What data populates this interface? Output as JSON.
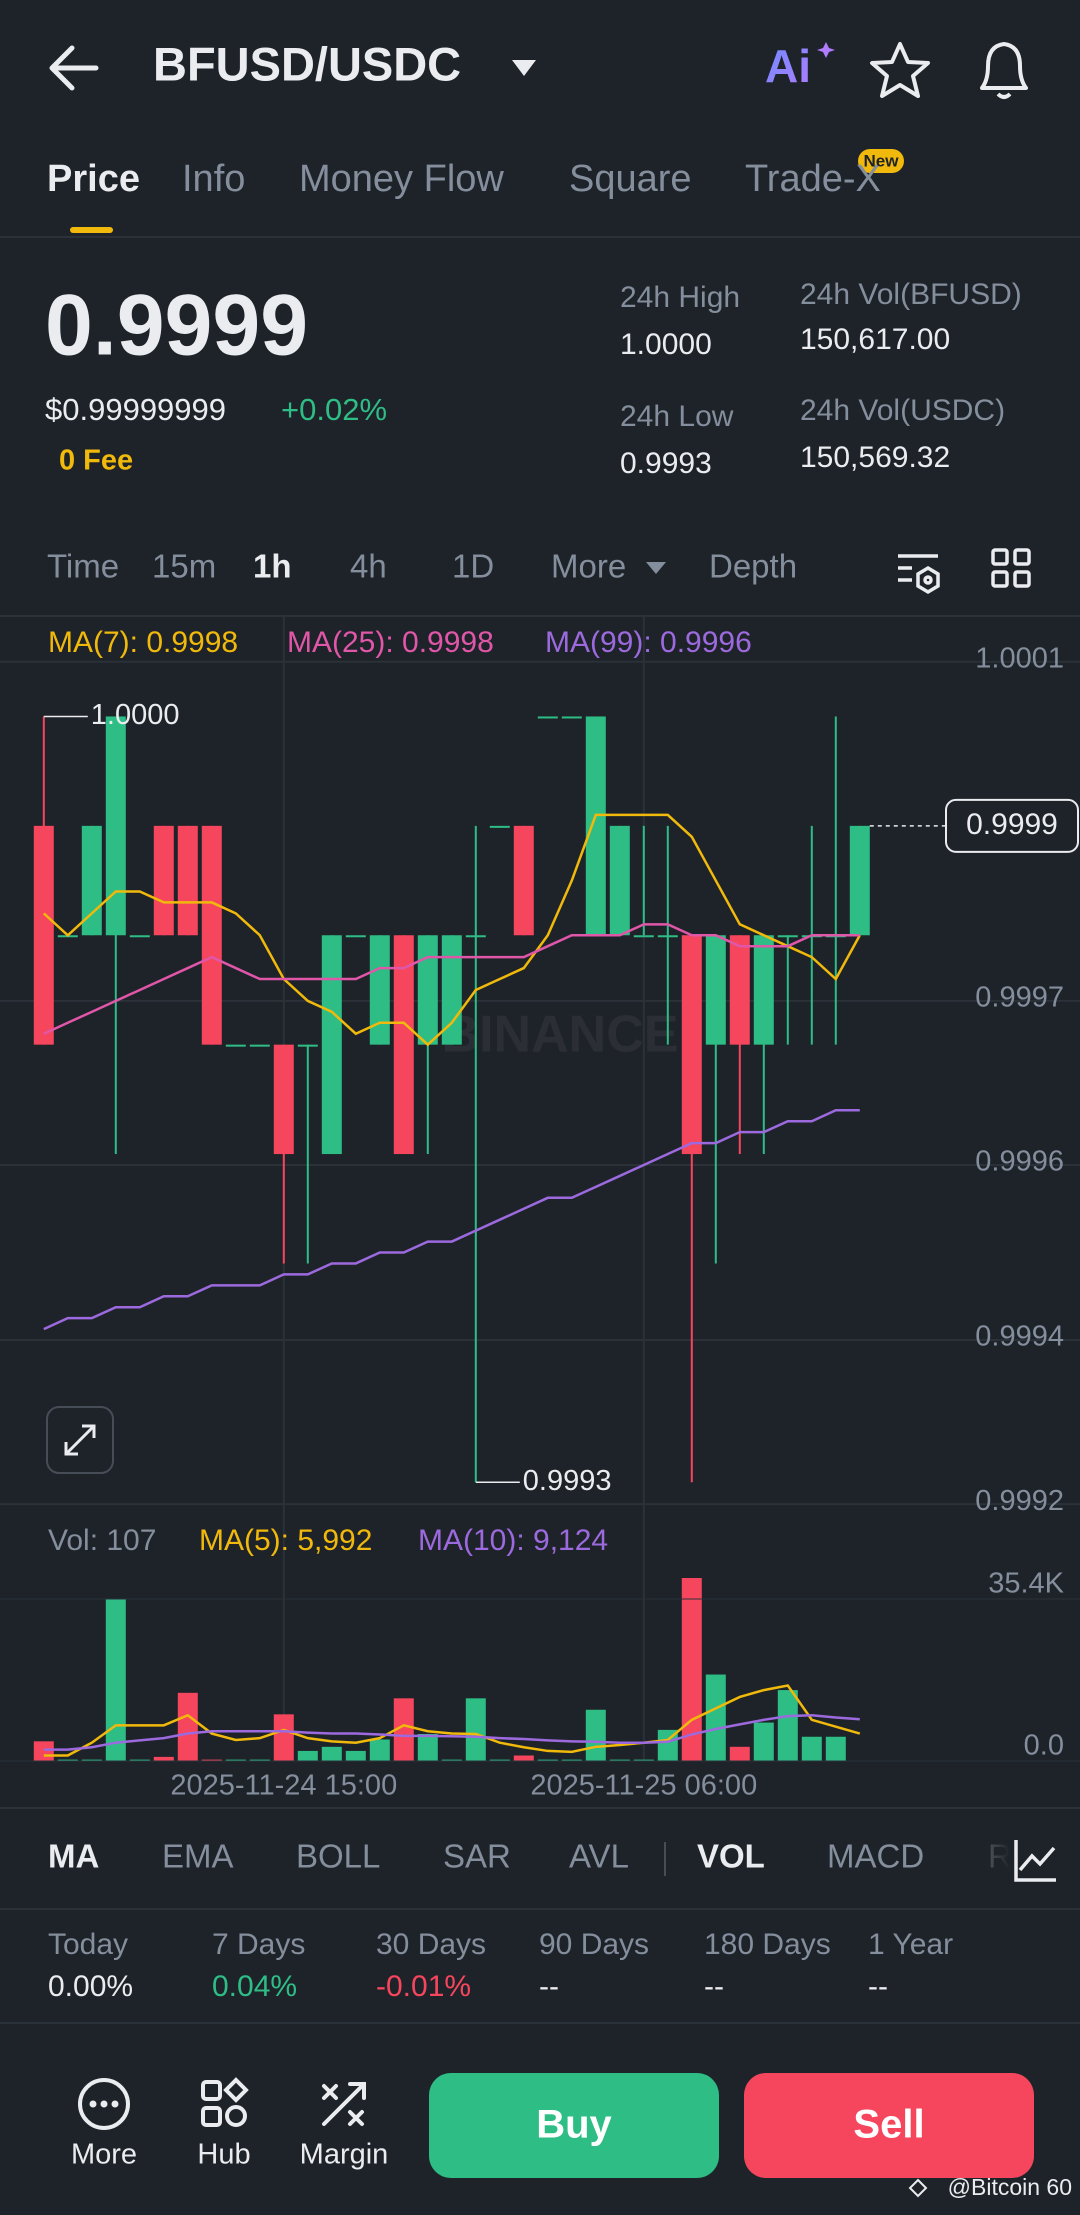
{
  "header": {
    "pair": "BFUSD/USDC",
    "ai": "Ai"
  },
  "tabs": [
    "Price",
    "Info",
    "Money Flow",
    "Square",
    "Trade-X"
  ],
  "new_badge": "New",
  "price": {
    "last": "0.9999",
    "usd": "$0.99999999",
    "change": "+0.02%",
    "fee": "0 Fee"
  },
  "stats": [
    {
      "label": "24h High",
      "value": "1.0000"
    },
    {
      "label": "24h Vol(BFUSD)",
      "value": "150,617.00"
    },
    {
      "label": "24h Low",
      "value": "0.9993"
    },
    {
      "label": "24h Vol(USDC)",
      "value": "150,569.32"
    }
  ],
  "intervals": [
    "Time",
    "15m",
    "1h",
    "4h",
    "1D",
    "More",
    "Depth"
  ],
  "ma_legend": [
    "MA(7): 0.9998",
    "MA(25): 0.9998",
    "MA(99): 0.9996"
  ],
  "vol_legend": [
    "Vol: 107",
    "MA(5): 5,992",
    "MA(10): 9,124"
  ],
  "watermark": "BINANCE",
  "chart_data": {
    "type": "candlestick",
    "up_color": "#2ebd85",
    "down_color": "#f6465d",
    "grid": true,
    "categories": [
      null,
      null,
      null,
      null,
      null,
      null,
      null,
      null,
      null,
      null,
      "2025-11-24 15:00",
      null,
      null,
      null,
      null,
      null,
      null,
      null,
      null,
      null,
      null,
      null,
      null,
      null,
      null,
      "2025-11-25 06:00",
      null,
      null,
      null,
      null,
      null,
      null,
      null,
      null,
      null
    ],
    "open": [
      0.9999,
      0.9998,
      0.9998,
      0.9998,
      0.9998,
      0.9999,
      0.9999,
      0.9999,
      0.9997,
      0.9997,
      0.9997,
      0.9997,
      0.9996,
      0.9998,
      0.9997,
      0.9998,
      0.9997,
      0.9997,
      0.9998,
      0.9999,
      0.9999,
      1.0,
      1.0,
      0.9998,
      0.9998,
      0.9998,
      0.9998,
      0.9998,
      0.9997,
      0.9998,
      0.9997,
      0.9998,
      0.9998,
      0.9998,
      0.9998
    ],
    "high": [
      1.0,
      0.9998,
      0.9999,
      1.0,
      0.9998,
      0.9999,
      0.9999,
      0.9999,
      0.9997,
      0.9997,
      0.9997,
      0.9997,
      0.9998,
      0.9998,
      0.9998,
      0.9998,
      0.9998,
      0.9998,
      0.9999,
      0.9999,
      0.9999,
      1.0,
      1.0,
      1.0,
      0.9999,
      0.9999,
      0.9999,
      0.9998,
      0.9998,
      0.9998,
      0.9998,
      0.9998,
      0.9999,
      1.0,
      0.9999
    ],
    "low": [
      0.9997,
      0.9998,
      0.9998,
      0.9996,
      0.9998,
      0.9998,
      0.9998,
      0.9997,
      0.9997,
      0.9997,
      0.9995,
      0.9995,
      0.9996,
      0.9998,
      0.9997,
      0.9996,
      0.9996,
      0.9997,
      0.9993,
      0.9999,
      0.9998,
      1.0,
      1.0,
      0.9998,
      0.9998,
      0.9998,
      0.9997,
      0.9993,
      0.9995,
      0.9996,
      0.9996,
      0.9997,
      0.9997,
      0.9997,
      0.9998
    ],
    "close": [
      0.9997,
      0.9998,
      0.9999,
      1.0,
      0.9998,
      0.9998,
      0.9998,
      0.9997,
      0.9997,
      0.9997,
      0.9996,
      0.9997,
      0.9998,
      0.9998,
      0.9998,
      0.9996,
      0.9998,
      0.9998,
      0.9998,
      0.9999,
      0.9998,
      1.0,
      1.0,
      1.0,
      0.9999,
      0.9998,
      0.9998,
      0.9996,
      0.9998,
      0.9997,
      0.9998,
      0.9998,
      0.9998,
      0.9998,
      0.9999
    ],
    "series": [
      {
        "color": "#f0b90b",
        "values": [
          0.99982,
          0.9998,
          0.99982,
          0.99984,
          0.99984,
          0.99983,
          0.99983,
          0.99983,
          0.99982,
          0.9998,
          0.99976,
          0.99974,
          0.99973,
          0.99971,
          0.99972,
          0.99972,
          0.9997,
          0.99972,
          0.99975,
          0.99976,
          0.99977,
          0.9998,
          0.99985,
          0.99991,
          0.99991,
          0.99991,
          0.99991,
          0.99989,
          0.99985,
          0.99981,
          0.9998,
          0.99979,
          0.99978,
          0.99976,
          0.9998
        ]
      },
      {
        "color": "#e056a8",
        "values": [
          0.99971,
          0.99972,
          0.99973,
          0.99974,
          0.99975,
          0.99976,
          0.99977,
          0.99978,
          0.99977,
          0.99976,
          0.99976,
          0.99976,
          0.99976,
          0.99976,
          0.99977,
          0.99977,
          0.99978,
          0.99978,
          0.99978,
          0.99978,
          0.99978,
          0.99979,
          0.9998,
          0.9998,
          0.9998,
          0.99981,
          0.99981,
          0.9998,
          0.9998,
          0.99979,
          0.99979,
          0.99979,
          0.9998,
          0.9998,
          0.9998
        ]
      },
      {
        "color": "#9c6ade",
        "values": [
          0.99944,
          0.99945,
          0.99945,
          0.99946,
          0.99946,
          0.99947,
          0.99947,
          0.99948,
          0.99948,
          0.99948,
          0.99949,
          0.99949,
          0.9995,
          0.9995,
          0.99951,
          0.99951,
          0.99952,
          0.99952,
          0.99953,
          0.99954,
          0.99955,
          0.99956,
          0.99956,
          0.99957,
          0.99958,
          0.99959,
          0.9996,
          0.99961,
          0.99961,
          0.99962,
          0.99962,
          0.99963,
          0.99963,
          0.99964,
          0.99964
        ]
      }
    ],
    "ylim": [
      0.99926,
      1.00009
    ],
    "yticks": [
      {
        "value": 1.00005,
        "label": "1.0001"
      },
      {
        "value": 0.99974,
        "label": "0.9997"
      },
      {
        "value": 0.99959,
        "label": "0.9996"
      },
      {
        "value": 0.99943,
        "label": "0.9994"
      },
      {
        "value": 0.99928,
        "label": "0.9992"
      }
    ],
    "high_marker": {
      "value": 1.0,
      "label": "1.0000"
    },
    "low_marker": {
      "value": 0.9993,
      "label": "0.9993"
    },
    "last_price": {
      "value": 0.9999,
      "label": "0.9999"
    },
    "volume": [
      4300,
      300,
      300,
      35400,
      300,
      900,
      14900,
      300,
      300,
      300,
      10200,
      2200,
      3100,
      2200,
      4700,
      13700,
      5900,
      300,
      13700,
      300,
      1200,
      300,
      300,
      11200,
      300,
      300,
      6800,
      40000,
      18900,
      3100,
      8400,
      15500,
      5300,
      5300,
      107
    ],
    "vol_series": [
      {
        "color": "#f0b90b",
        "values": [
          1200,
          1200,
          4000,
          7800,
          7800,
          7800,
          10000,
          6000,
          4600,
          5000,
          6800,
          5000,
          4300,
          4000,
          5000,
          7800,
          6500,
          6000,
          5900,
          4000,
          3000,
          2200,
          2000,
          3100,
          3500,
          4000,
          4600,
          9000,
          11500,
          14000,
          15500,
          16500,
          9000,
          7500,
          5992
        ]
      },
      {
        "color": "#9c6ade",
        "values": [
          2500,
          2500,
          3000,
          4000,
          4500,
          5000,
          6000,
          6500,
          6500,
          6500,
          6500,
          6200,
          6000,
          6000,
          5800,
          5500,
          5500,
          5400,
          5300,
          5000,
          4800,
          4500,
          4300,
          4200,
          4000,
          4000,
          4200,
          5800,
          7000,
          8000,
          9000,
          9800,
          10000,
          9500,
          9124
        ]
      }
    ],
    "vol_ylim": [
      0,
      40000
    ],
    "vol_yticks": [
      {
        "value": 35400,
        "label": "35.4K"
      },
      {
        "value": 0,
        "label": "0.0"
      }
    ]
  },
  "indicators": [
    "MA",
    "EMA",
    "BOLL",
    "SAR",
    "AVL",
    "VOL",
    "MACD",
    "R"
  ],
  "performance": [
    {
      "period": "Today",
      "value": "0.00%"
    },
    {
      "period": "7 Days",
      "value": "0.04%"
    },
    {
      "period": "30 Days",
      "value": "-0.01%"
    },
    {
      "period": "90 Days",
      "value": "--"
    },
    {
      "period": "180 Days",
      "value": "--"
    },
    {
      "period": "1 Year",
      "value": "--"
    }
  ],
  "bottom": {
    "more": "More",
    "hub": "Hub",
    "margin": "Margin",
    "buy": "Buy",
    "sell": "Sell"
  },
  "footer": "@Bitcoin 60"
}
